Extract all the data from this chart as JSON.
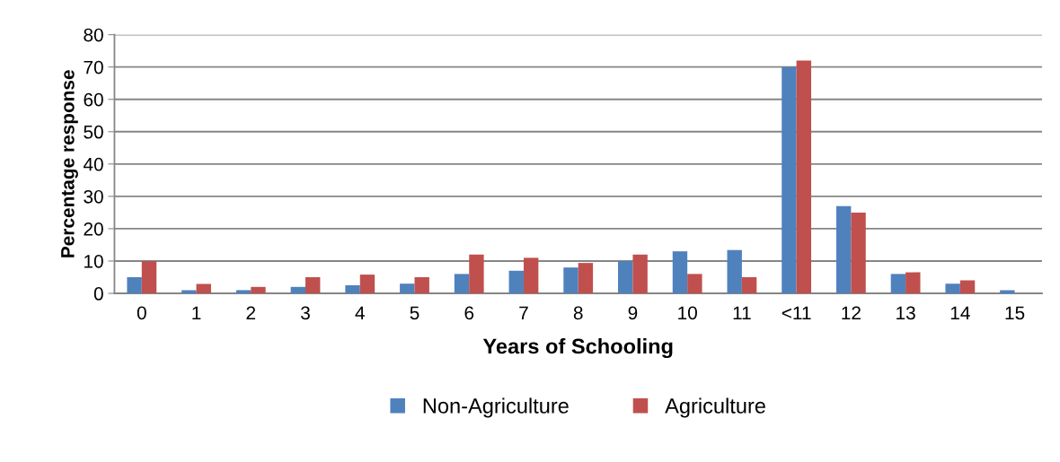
{
  "chart_data": {
    "type": "bar",
    "xlabel": "Years of Schooling",
    "ylabel": "Percentage response",
    "categories": [
      "0",
      "1",
      "2",
      "3",
      "4",
      "5",
      "6",
      "7",
      "8",
      "9",
      "10",
      "11",
      "<11",
      "12",
      "13",
      "14",
      "15"
    ],
    "series": [
      {
        "name": "Non-Agriculture",
        "color": "#4f81bd",
        "values": [
          5,
          1,
          1,
          2,
          2.5,
          3,
          6,
          7,
          8,
          10,
          13,
          13.4,
          70,
          27,
          6,
          3,
          1
        ]
      },
      {
        "name": "Agriculture",
        "color": "#c0504d",
        "values": [
          10,
          2.9,
          2,
          5,
          5.8,
          5,
          12,
          11,
          9.4,
          12,
          6,
          5,
          72,
          25,
          6.5,
          4,
          null
        ]
      }
    ],
    "ylim": [
      0,
      80
    ],
    "yticks": [
      0,
      10,
      20,
      30,
      40,
      50,
      60,
      70,
      80
    ],
    "grid": "y",
    "legend": "bottom"
  }
}
